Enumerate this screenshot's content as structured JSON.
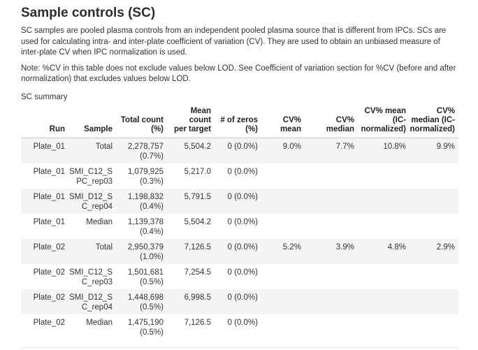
{
  "page": {
    "title": "Sample controls (SC)",
    "intro": "SC samples are pooled plasma controls from an independent pooled plasma source that is different from IPCs. SCs are used for calculating intra- and inter-plate coefficient of variation (CV). They are used to obtain an unbiased measure of inter-plate CV when IPC normalization is used.",
    "note": "Note: %CV in this table does not exclude values below LOD. See Coefficient of variation section for %CV (before and after normalization) that excludes values below LOD.",
    "table_caption": "SC summary"
  },
  "colors": {
    "text": "#333333",
    "heading": "#2d2d2d",
    "row_stripe": "#f5f5f5",
    "header_border": "#c9c9c9",
    "bottom_rule": "#e0e0e0",
    "background": "#ffffff"
  },
  "table": {
    "columns": [
      "Run",
      "Sample",
      "Total count\n(%)",
      "Mean count\nper target",
      "# of zeros\n(%)",
      "CV% mean",
      "CV%\nmedian",
      "CV% mean\n(IC-\nnormalized)",
      "CV%\nmedian (IC-\nnormalized)"
    ],
    "rows": [
      [
        "Plate_01",
        "Total",
        "2,278,757\n(0.7%)",
        "5,504.2",
        "0 (0.0%)",
        "9.0%",
        "7.7%",
        "10.8%",
        "9.9%"
      ],
      [
        "Plate_01",
        "SMI_C12_S\nPC_rep03",
        "1,079,925\n(0.3%)",
        "5,217.0",
        "0 (0.0%)",
        "",
        "",
        "",
        ""
      ],
      [
        "Plate_01",
        "SMI_D12_S\nC_rep04",
        "1,198,832\n(0.4%)",
        "5,791.5",
        "0 (0.0%)",
        "",
        "",
        "",
        ""
      ],
      [
        "Plate_01",
        "Median",
        "1,139,378\n(0.4%)",
        "5,504.2",
        "0 (0.0%)",
        "",
        "",
        "",
        ""
      ],
      [
        "Plate_02",
        "Total",
        "2,950,379\n(1.0%)",
        "7,126.5",
        "0 (0.0%)",
        "5.2%",
        "3.9%",
        "4.8%",
        "2.9%"
      ],
      [
        "Plate_02",
        "SMI_C12_S\nC_rep03",
        "1,501,681\n(0.5%)",
        "7,254.5",
        "0 (0.0%)",
        "",
        "",
        "",
        ""
      ],
      [
        "Plate_02",
        "SMI_D12_S\nC_rep04",
        "1,448,698\n(0.5%)",
        "6,998.5",
        "0 (0.0%)",
        "",
        "",
        "",
        ""
      ],
      [
        "Plate_02",
        "Median",
        "1,475,190\n(0.5%)",
        "7,126.5",
        "0 (0.0%)",
        "",
        "",
        "",
        ""
      ]
    ]
  }
}
